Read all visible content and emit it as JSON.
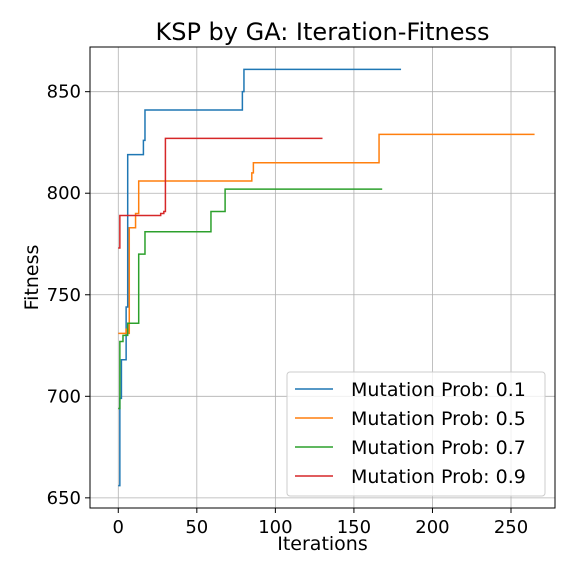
{
  "chart_data": {
    "type": "line",
    "title": "KSP by GA: Iteration-Fitness",
    "xlabel": "Iterations",
    "ylabel": "Fitness",
    "xlim": [
      -18,
      278
    ],
    "ylim": [
      645,
      872
    ],
    "xticks": [
      0,
      50,
      100,
      150,
      200,
      250
    ],
    "yticks": [
      650,
      700,
      750,
      800,
      850
    ],
    "grid": true,
    "legend_position": "lower-right",
    "series": [
      {
        "name": "Mutation Prob: 0.1",
        "color": "#1f77b4",
        "x": [
          0,
          1,
          1,
          2,
          2,
          5,
          5,
          6,
          6,
          16,
          16,
          17,
          17,
          79,
          79,
          80,
          80,
          180
        ],
        "y": [
          656,
          656,
          699,
          699,
          718,
          718,
          744,
          744,
          819,
          819,
          826,
          826,
          841,
          841,
          850,
          850,
          861,
          861
        ]
      },
      {
        "name": "Mutation Prob: 0.5",
        "color": "#ff7f0e",
        "x": [
          0,
          5,
          5,
          6,
          6,
          7,
          7,
          11,
          11,
          13,
          13,
          85,
          85,
          86,
          86,
          164,
          164,
          166,
          166,
          265
        ],
        "y": [
          731,
          731,
          733,
          733,
          731,
          731,
          783,
          783,
          790,
          790,
          806,
          806,
          810,
          810,
          815,
          815,
          815,
          815,
          829,
          829
        ]
      },
      {
        "name": "Mutation Prob: 0.7",
        "color": "#2ca02c",
        "x": [
          0,
          1,
          1,
          3,
          3,
          6,
          6,
          13,
          13,
          17,
          17,
          59,
          59,
          66,
          66,
          68,
          68,
          168
        ],
        "y": [
          694,
          694,
          727,
          727,
          730,
          730,
          736,
          736,
          770,
          770,
          781,
          781,
          791,
          791,
          791,
          791,
          802,
          802
        ]
      },
      {
        "name": "Mutation Prob: 0.9",
        "color": "#d62728",
        "x": [
          0,
          1,
          1,
          27,
          27,
          29,
          29,
          30,
          30,
          130
        ],
        "y": [
          773,
          773,
          789,
          789,
          790,
          790,
          791,
          791,
          827,
          827
        ]
      }
    ]
  }
}
